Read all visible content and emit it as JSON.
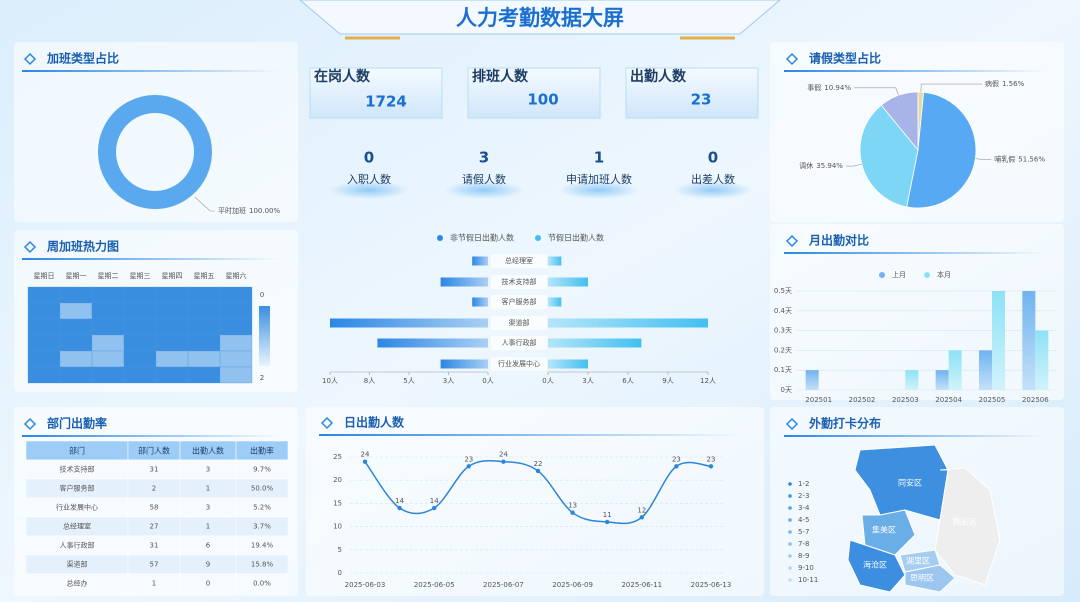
{
  "title": "人力考勤数据大屏",
  "kpis": [
    {
      "label": "在岗人数",
      "value": 1724
    },
    {
      "label": "排班人数",
      "value": 100
    },
    {
      "label": "出勤人数",
      "value": 23
    }
  ],
  "stats": [
    {
      "label": "入职人数",
      "value": 0
    },
    {
      "label": "请假人数",
      "value": 3
    },
    {
      "label": "申请加班人数",
      "value": 1
    },
    {
      "label": "出差人数",
      "value": 0
    }
  ],
  "chart_data": [
    {
      "type": "donut",
      "title": "加班类型占比",
      "categories": [
        "平时加班"
      ],
      "values": [
        100
      ],
      "value_labels": [
        "100.00%"
      ],
      "colors": [
        "#5aa8ee"
      ]
    },
    {
      "type": "heatmap",
      "title": "周加班热力图",
      "categories": [
        "星期日",
        "星期一",
        "星期二",
        "星期三",
        "星期四",
        "星期五",
        "星期六"
      ],
      "values": [
        [
          0,
          0,
          0,
          0,
          0,
          0,
          0
        ],
        [
          0,
          1,
          0,
          0,
          0,
          0,
          0
        ],
        [
          0,
          0,
          0,
          0,
          0,
          0,
          0
        ],
        [
          0,
          0,
          1,
          0,
          0,
          0,
          1
        ],
        [
          0,
          1,
          1,
          0,
          1,
          1,
          1
        ],
        [
          0,
          0,
          0,
          0,
          0,
          0,
          1
        ]
      ],
      "visual_range": [
        0,
        2
      ],
      "colors": [
        "#3a8ee0",
        "#e8f4fd"
      ]
    },
    {
      "type": "mirror_bar",
      "categories": [
        "总经理室",
        "技术支持部",
        "客户服务部",
        "渠道部",
        "人事行政部",
        "行业发展中心"
      ],
      "series": [
        {
          "name": "非节假日出勤人数",
          "color": "#2b86e4",
          "values": [
            1,
            3,
            1,
            10,
            7,
            3
          ],
          "xlim": [
            0,
            10
          ],
          "xticks": [
            {
              "value": 0,
              "label": "0人"
            },
            {
              "value": 2.5,
              "label": "3人"
            },
            {
              "value": 5,
              "label": "5人"
            },
            {
              "value": 7.5,
              "label": "8人"
            },
            {
              "value": 10,
              "label": "10人"
            }
          ]
        },
        {
          "name": "节假日出勤人数",
          "color": "#43bff0",
          "values": [
            1,
            3,
            1,
            12,
            7,
            3
          ],
          "xlim": [
            0,
            12
          ],
          "xticks": [
            {
              "value": 0,
              "label": "0人"
            },
            {
              "value": 3,
              "label": "3人"
            },
            {
              "value": 6,
              "label": "6人"
            },
            {
              "value": 9,
              "label": "9人"
            },
            {
              "value": 12,
              "label": "12人"
            }
          ]
        }
      ]
    },
    {
      "type": "pie",
      "title": "请假类型占比",
      "categories": [
        "病假",
        "哺乳假",
        "调休",
        "事假"
      ],
      "values": [
        1.56,
        51.56,
        35.94,
        10.94
      ],
      "value_labels": [
        "1.56%",
        "51.56%",
        "35.94%",
        "10.94%"
      ],
      "colors": [
        "#e6d9a2",
        "#57a9f4",
        "#7dd6f5",
        "#a8b4e8"
      ]
    },
    {
      "type": "bar",
      "title": "月出勤对比",
      "categories": [
        "202501",
        "202502",
        "202503",
        "202504",
        "202505",
        "202506"
      ],
      "series": [
        {
          "name": "上月",
          "color": "#6fb3f0",
          "values": [
            0.1,
            0,
            0,
            0.1,
            0.2,
            0.5
          ]
        },
        {
          "name": "本月",
          "color": "#8ce2f5",
          "values": [
            0,
            0,
            0.1,
            0.2,
            0.5,
            0.3
          ]
        }
      ],
      "ylim": [
        0,
        0.5
      ],
      "yticks": [
        {
          "value": 0,
          "label": "0天"
        },
        {
          "value": 0.1,
          "label": "0.1天"
        },
        {
          "value": 0.2,
          "label": "0.2天"
        },
        {
          "value": 0.3,
          "label": "0.3天"
        },
        {
          "value": 0.4,
          "label": "0.4天"
        },
        {
          "value": 0.5,
          "label": "0.5天"
        }
      ]
    },
    {
      "type": "line",
      "title": "日出勤人数",
      "categories": [
        "2025-06-03",
        null,
        "2025-06-05",
        null,
        "2025-06-07",
        null,
        "2025-06-09",
        null,
        "2025-06-11",
        null,
        "2025-06-13"
      ],
      "values": [
        24,
        14,
        14,
        23,
        24,
        22,
        13,
        11,
        12,
        23,
        23
      ],
      "color": "#2a86d8",
      "ylim": [
        0,
        25
      ],
      "yticks": [
        0,
        5,
        10,
        15,
        20,
        25
      ]
    }
  ],
  "table": {
    "title": "部门出勤率",
    "columns": [
      "部门",
      "部门人数",
      "出勤人数",
      "出勤率"
    ],
    "rows": [
      [
        "技术支持部",
        "31",
        "3",
        "9.7%"
      ],
      [
        "客户服务部",
        "2",
        "1",
        "50.0%"
      ],
      [
        "行业发展中心",
        "58",
        "3",
        "5.2%"
      ],
      [
        "总经理室",
        "27",
        "1",
        "3.7%"
      ],
      [
        "人事行政部",
        "31",
        "6",
        "19.4%"
      ],
      [
        "渠道部",
        "57",
        "9",
        "15.8%"
      ],
      [
        "总经办",
        "1",
        "0",
        "0.0%"
      ]
    ]
  },
  "map": {
    "title": "外勤打卡分布",
    "legend": [
      "1-2",
      "2-3",
      "3-4",
      "4-5",
      "5-7",
      "7-8",
      "8-9",
      "9-10",
      "10-11"
    ],
    "regions": [
      "同安区",
      "集美区",
      "海沧区",
      "湖里区",
      "思明区",
      "翔安区"
    ]
  }
}
